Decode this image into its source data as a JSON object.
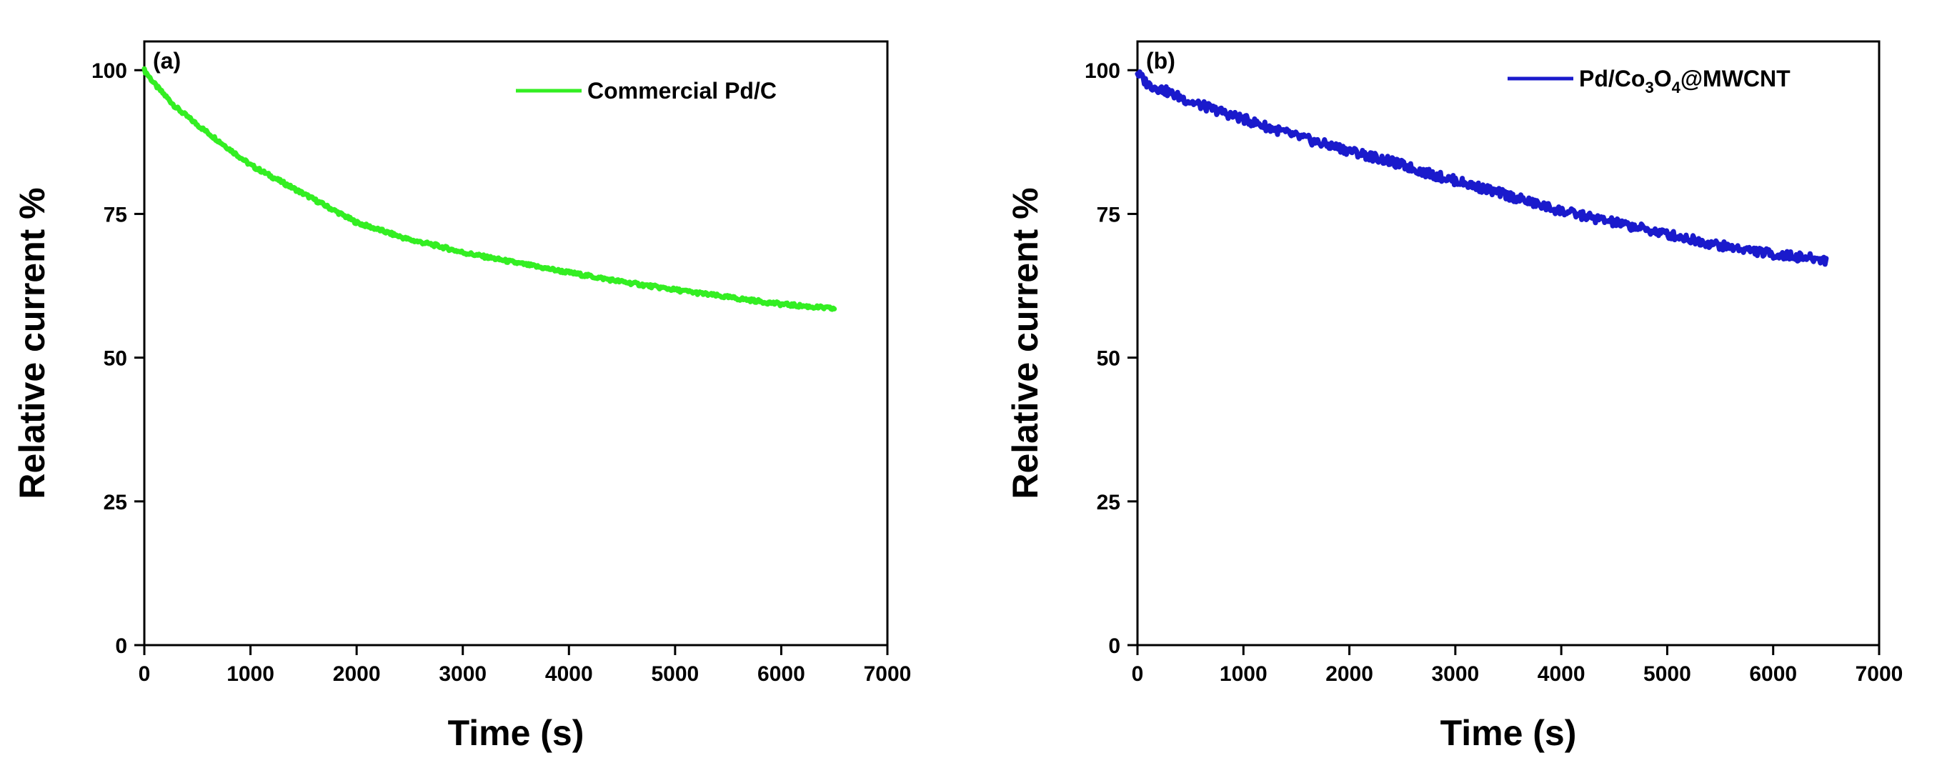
{
  "chart_data": [
    {
      "type": "line",
      "panel_label": "(a)",
      "xlabel": "Time (s)",
      "ylabel": "Relative current %",
      "xlim": [
        0,
        7000
      ],
      "ylim": [
        0,
        105
      ],
      "xticks": [
        0,
        1000,
        2000,
        3000,
        4000,
        5000,
        6000,
        7000
      ],
      "yticks": [
        0,
        25,
        50,
        75,
        100
      ],
      "legend": {
        "position": "top-right"
      },
      "series": [
        {
          "name": "Commercial Pd/C",
          "legend_parts": [
            {
              "text": "Commercial Pd/C",
              "sub": false
            }
          ],
          "color": "#33ee22",
          "x": [
            0,
            100,
            200,
            300,
            400,
            500,
            750,
            1000,
            1250,
            1500,
            1750,
            2000,
            2250,
            2500,
            2750,
            3000,
            3500,
            4000,
            4500,
            5000,
            5500,
            6000,
            6500
          ],
          "y": [
            100,
            97.5,
            95.5,
            93.5,
            92,
            90.5,
            87,
            83.5,
            81,
            78.5,
            76,
            73.5,
            72,
            70.5,
            69.5,
            68.3,
            66.5,
            64.8,
            63.2,
            61.8,
            60.5,
            59.3,
            58.5
          ]
        }
      ]
    },
    {
      "type": "line",
      "panel_label": "(b)",
      "xlabel": "Time (s)",
      "ylabel": "Relative current %",
      "xlim": [
        0,
        7000
      ],
      "ylim": [
        0,
        105
      ],
      "xticks": [
        0,
        1000,
        2000,
        3000,
        4000,
        5000,
        6000,
        7000
      ],
      "yticks": [
        0,
        25,
        50,
        75,
        100
      ],
      "legend": {
        "position": "top-right"
      },
      "series": [
        {
          "name": "Pd/Co3O4@MWCNT",
          "legend_parts": [
            {
              "text": "Pd/Co",
              "sub": false
            },
            {
              "text": "3",
              "sub": true
            },
            {
              "text": "O",
              "sub": false
            },
            {
              "text": "4",
              "sub": true
            },
            {
              "text": "@MWCNT",
              "sub": false
            }
          ],
          "color": "#1a1acc",
          "x": [
            0,
            100,
            250,
            500,
            750,
            1000,
            1250,
            1500,
            1750,
            2000,
            2250,
            2500,
            2750,
            3000,
            3250,
            3500,
            3750,
            4000,
            4250,
            4500,
            4750,
            5000,
            5250,
            5500,
            5750,
            6000,
            6250,
            6500
          ],
          "y": [
            99.5,
            97.5,
            96.5,
            94.5,
            93,
            91.5,
            90,
            88.5,
            87.2,
            86,
            84.8,
            83.5,
            82,
            80.8,
            79.5,
            78.2,
            76.8,
            75.5,
            74.5,
            73.5,
            72.5,
            71.5,
            70.5,
            69.5,
            68.8,
            68,
            67.5,
            67
          ]
        }
      ]
    }
  ]
}
